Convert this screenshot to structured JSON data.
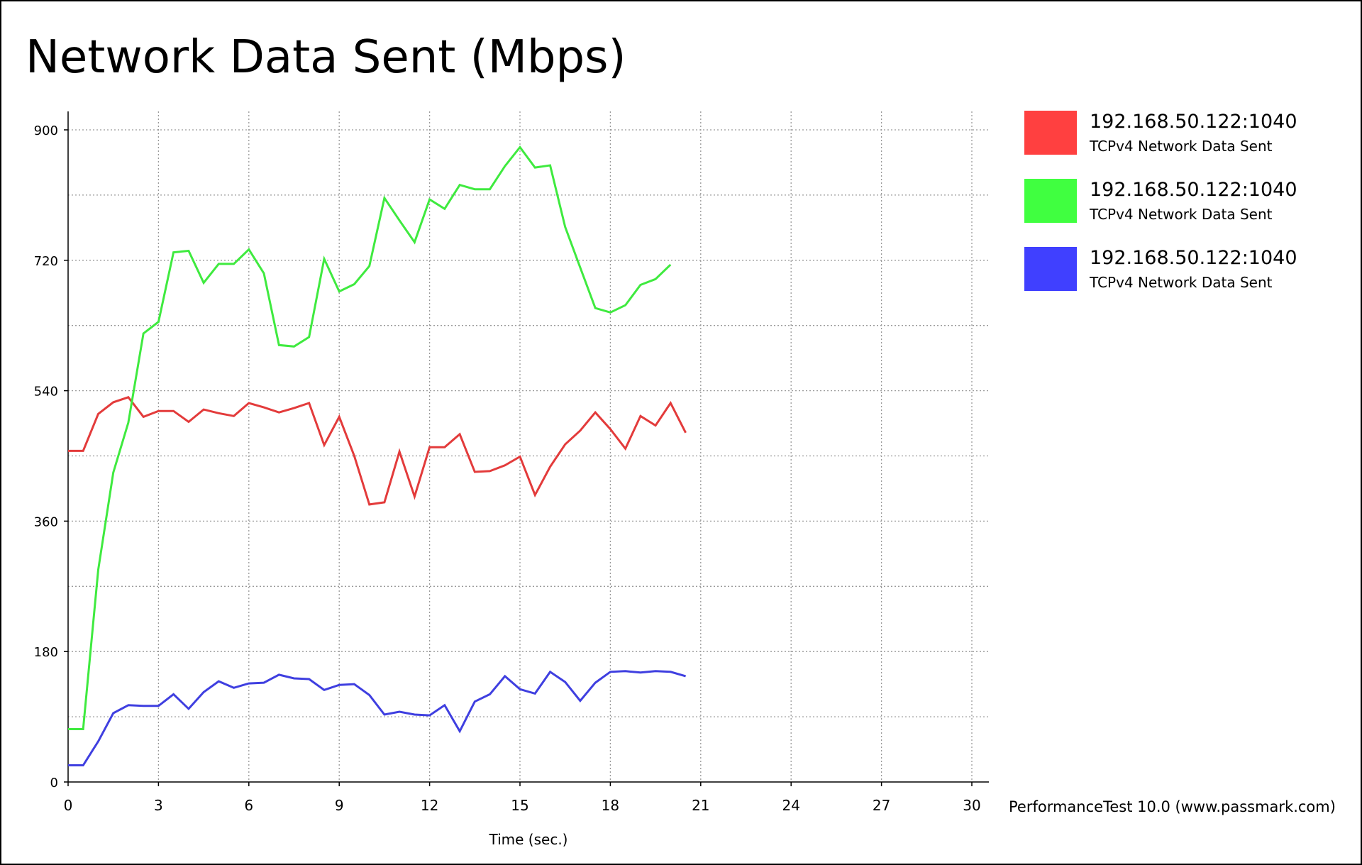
{
  "chart_data": {
    "type": "line",
    "title": "Network Data Sent (Mbps)",
    "xlabel": "Time (sec.)",
    "ylabel": "",
    "xlim": [
      0,
      30
    ],
    "ylim": [
      0,
      900
    ],
    "x_ticks": [
      0,
      3,
      6,
      9,
      12,
      15,
      18,
      21,
      24,
      27,
      30
    ],
    "y_ticks": [
      0,
      180,
      360,
      540,
      720,
      900
    ],
    "grid": true,
    "legend": "right",
    "series": [
      {
        "name": "192.168.50.122:1040",
        "description": "TCPv4 Network Data Sent",
        "color": "#ff4040",
        "x": [
          0,
          0.5,
          1,
          1.5,
          2,
          2.5,
          3,
          3.5,
          4,
          4.5,
          5,
          5.5,
          6,
          6.5,
          7,
          7.5,
          8,
          8.5,
          9,
          9.5,
          10,
          10.5,
          11,
          11.5,
          12,
          12.5,
          13,
          13.5,
          14,
          14.5,
          15,
          15.5,
          16,
          16.5,
          17,
          17.5,
          18,
          18.5,
          19,
          19.5,
          20,
          20.5
        ],
        "y": [
          457,
          457,
          508,
          524,
          531,
          504,
          512,
          512,
          497,
          514,
          509,
          505,
          523,
          517,
          510,
          516,
          523,
          465,
          504,
          450,
          383,
          386,
          456,
          394,
          462,
          462,
          480,
          428,
          429,
          437,
          449,
          396,
          435,
          466,
          485,
          510,
          487,
          460,
          505,
          492,
          523,
          482
        ]
      },
      {
        "name": "192.168.50.122:1040",
        "description": "TCPv4 Network Data Sent",
        "color": "#40ff40",
        "x": [
          0,
          0.5,
          1,
          1.5,
          2,
          2.5,
          3,
          3.5,
          4,
          4.5,
          5,
          5.5,
          6,
          6.5,
          7,
          7.5,
          8,
          8.5,
          9,
          9.5,
          10,
          10.5,
          11,
          11.5,
          12,
          12.5,
          13,
          13.5,
          14,
          14.5,
          15,
          15.5,
          16,
          16.5,
          17,
          17.5,
          18,
          18.5,
          19,
          19.5,
          20
        ],
        "y": [
          73,
          73,
          293,
          427,
          496,
          619,
          635,
          731,
          733,
          689,
          715,
          715,
          735,
          702,
          603,
          601,
          614,
          722,
          677,
          687,
          712,
          806,
          775,
          745,
          804,
          791,
          824,
          818,
          818,
          850,
          876,
          848,
          851,
          766,
          710,
          654,
          648,
          658,
          686,
          694,
          714
        ]
      },
      {
        "name": "192.168.50.122:1040",
        "description": "TCPv4 Network Data Sent",
        "color": "#4040ff",
        "x": [
          0,
          0.5,
          1,
          1.5,
          2,
          2.5,
          3,
          3.5,
          4,
          4.5,
          5,
          5.5,
          6,
          6.5,
          7,
          7.5,
          8,
          8.5,
          9,
          9.5,
          10,
          10.5,
          11,
          11.5,
          12,
          12.5,
          13,
          13.5,
          14,
          14.5,
          15,
          15.5,
          16,
          16.5,
          17,
          17.5,
          18,
          18.5,
          19,
          19.5,
          20,
          20.5
        ],
        "y": [
          23,
          23,
          56,
          95,
          106,
          105,
          105,
          121,
          101,
          124,
          139,
          130,
          136,
          137,
          148,
          143,
          142,
          127,
          134,
          135,
          120,
          93,
          97,
          93,
          92,
          106,
          70,
          111,
          121,
          146,
          128,
          122,
          152,
          138,
          112,
          137,
          152,
          153,
          151,
          153,
          152,
          146
        ]
      }
    ]
  },
  "footer": {
    "watermark": "PerformanceTest 10.0 (www.passmark.com)"
  }
}
